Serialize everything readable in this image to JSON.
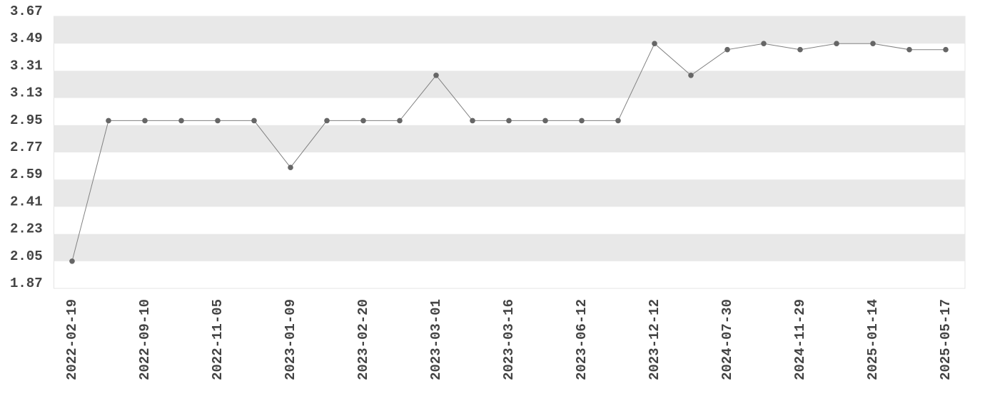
{
  "chart_data": {
    "type": "line",
    "categories": [
      "2022-02-19",
      null,
      "2022-09-10",
      null,
      "2022-11-05",
      null,
      "2023-01-09",
      null,
      "2023-02-20",
      null,
      "2023-03-01",
      null,
      "2023-03-16",
      null,
      "2023-06-12",
      null,
      "2023-12-12",
      null,
      "2024-07-30",
      null,
      "2024-11-29",
      null,
      "2025-01-14",
      null,
      "2025-05-17"
    ],
    "values": [
      2.05,
      2.98,
      2.98,
      2.98,
      2.98,
      2.98,
      2.67,
      2.98,
      2.98,
      2.98,
      3.28,
      2.98,
      2.98,
      2.98,
      2.98,
      2.98,
      3.49,
      3.28,
      3.45,
      3.49,
      3.45,
      3.49,
      3.49,
      3.45,
      3.45
    ],
    "color": "#808080",
    "marker_color": "#666666",
    "band_color": "#e8e8e8",
    "ylim": [
      1.87,
      3.67
    ],
    "yticks": [
      1.87,
      2.05,
      2.23,
      2.41,
      2.59,
      2.77,
      2.95,
      3.13,
      3.31,
      3.49,
      3.67
    ],
    "grid": "bands"
  }
}
